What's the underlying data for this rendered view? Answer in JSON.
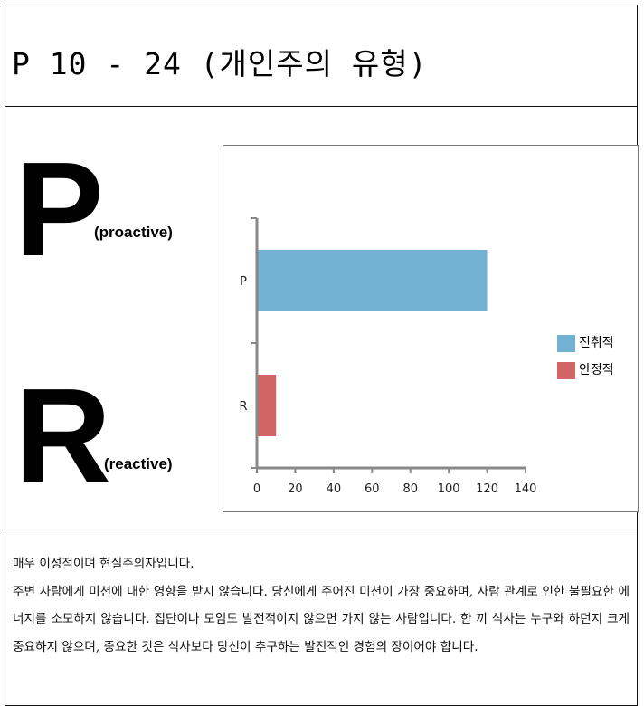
{
  "doc": {
    "title": "P 10 - 24 (개인주의 유형)",
    "big_letter_top": "P",
    "label_top": "(proactive)",
    "big_letter_bottom": "R",
    "label_bottom": "(reactive)",
    "description": [
      "매우 이성적이며 현실주의자입니다.",
      "주변 사람에게 미션에 대한 영향을 받지 않습니다. 당신에게 주어진 미션이 가장 중요하며, 사람 관계로 인한 불필요한 에너지를 소모하지 않습니다. 집단이나 모임도 발전적이지 않으면 가지 않는 사람입니다. 한 끼 식사는 누구와 하던지 크게 중요하지 않으며, 중요한 것은 식사보다 당신이 추구하는 발전적인 경험의 장이어야 합니다."
    ]
  },
  "chart_data": {
    "type": "bar",
    "orientation": "horizontal",
    "categories": [
      "P",
      "R"
    ],
    "series": [
      {
        "name": "진취적",
        "values": [
          120,
          null
        ],
        "color": "#72b1d2"
      },
      {
        "name": "안정적",
        "values": [
          null,
          10
        ],
        "color": "#d16464"
      }
    ],
    "xlim": [
      0,
      140
    ],
    "xticks": [
      0,
      20,
      40,
      60,
      80,
      100,
      120,
      140
    ],
    "legend_position": "right",
    "grid": false,
    "axis_color": "#888888"
  }
}
